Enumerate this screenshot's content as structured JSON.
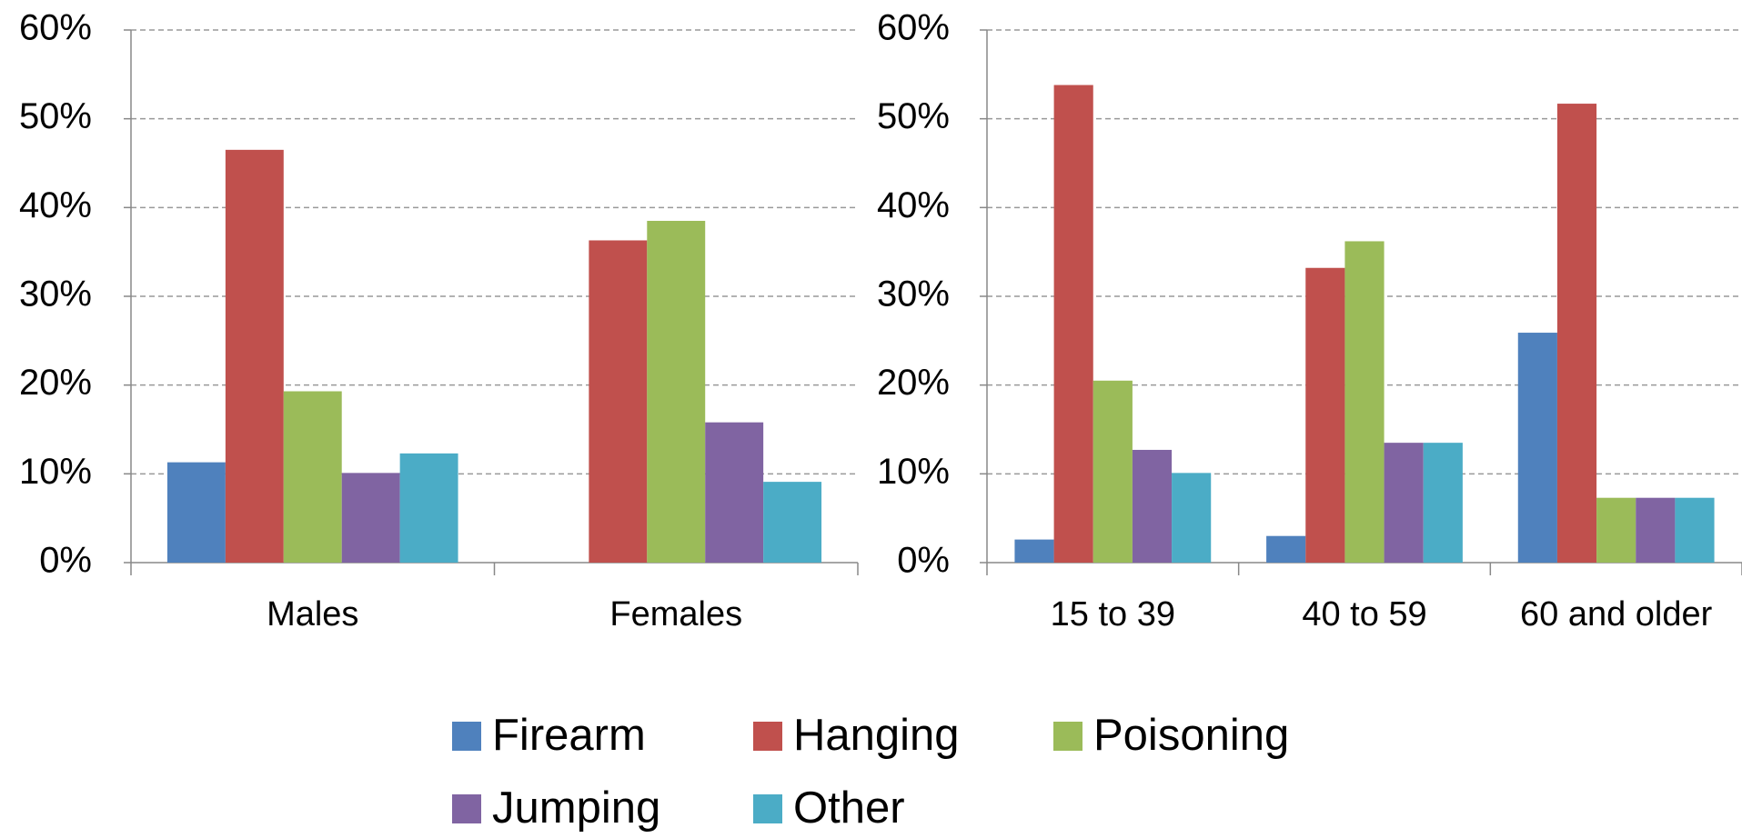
{
  "chart_data": [
    {
      "type": "bar",
      "categories": [
        "Males",
        "Females"
      ],
      "series": [
        {
          "name": "Firearm",
          "color": "#4f81bd",
          "values": [
            11.3,
            0
          ]
        },
        {
          "name": "Hanging",
          "color": "#c0504d",
          "values": [
            46.5,
            36.3
          ]
        },
        {
          "name": "Poisoning",
          "color": "#9bbb59",
          "values": [
            19.3,
            38.5
          ]
        },
        {
          "name": "Jumping",
          "color": "#8064a2",
          "values": [
            10.1,
            15.8
          ]
        },
        {
          "name": "Other",
          "color": "#4bacc6",
          "values": [
            12.3,
            9.1
          ]
        }
      ],
      "ylim": [
        0,
        60
      ],
      "yticks": [
        {
          "value": 0,
          "label": "0%"
        },
        {
          "value": 10,
          "label": "10%"
        },
        {
          "value": 20,
          "label": "20%"
        },
        {
          "value": 30,
          "label": "30%"
        },
        {
          "value": 40,
          "label": "40%"
        },
        {
          "value": 50,
          "label": "50%"
        },
        {
          "value": 60,
          "label": "60%"
        }
      ],
      "grid": true
    },
    {
      "type": "bar",
      "categories": [
        "15 to 39",
        "40 to 59",
        "60 and older"
      ],
      "series": [
        {
          "values": [
            2.6,
            3.0,
            25.9
          ]
        },
        {
          "values": [
            53.8,
            33.2,
            51.7
          ]
        },
        {
          "values": [
            20.5,
            36.2,
            7.3
          ]
        },
        {
          "values": [
            12.7,
            13.5,
            7.3
          ]
        },
        {
          "values": [
            10.1,
            13.5,
            7.3
          ]
        }
      ],
      "ylim": [
        0,
        60
      ],
      "yticks": [
        {
          "value": 0,
          "label": "0%"
        },
        {
          "value": 10,
          "label": "10%"
        },
        {
          "value": 20,
          "label": "20%"
        },
        {
          "value": 30,
          "label": "30%"
        },
        {
          "value": 40,
          "label": "40%"
        },
        {
          "value": 50,
          "label": "50%"
        },
        {
          "value": 60,
          "label": "60%"
        }
      ],
      "grid": true
    }
  ]
}
